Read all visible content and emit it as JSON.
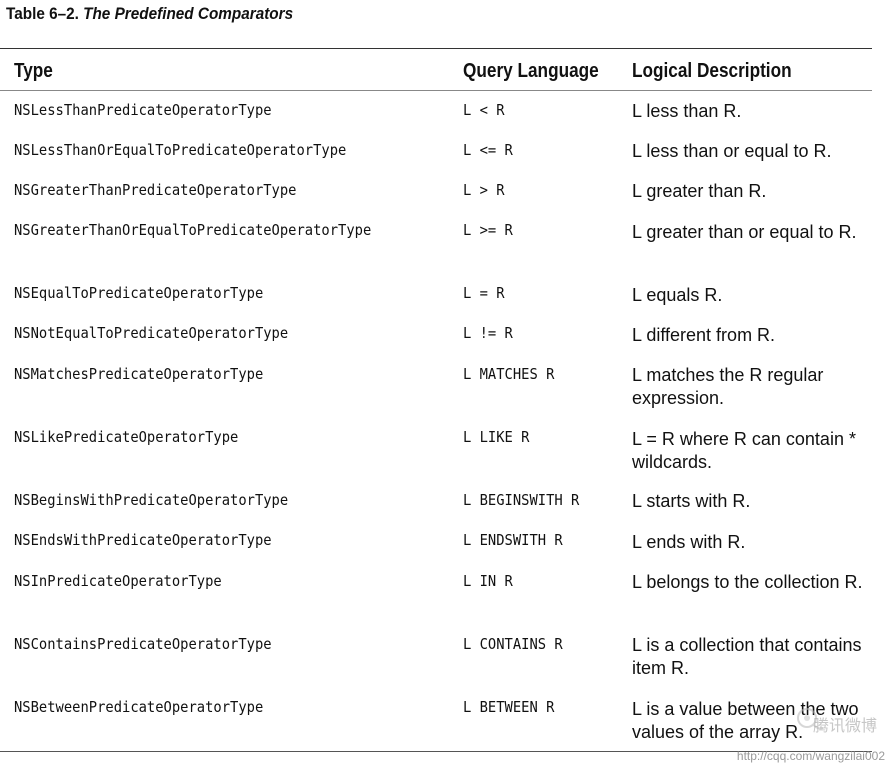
{
  "caption": {
    "number": "Table 6–2.",
    "title": "The Predefined Comparators"
  },
  "table": {
    "columns": [
      "Type",
      "Query Language",
      "Logical Description"
    ],
    "rows": [
      {
        "type": "NSLessThanPredicateOperatorType",
        "query": "L < R",
        "description": "L less than R."
      },
      {
        "type": "NSLessThanOrEqualToPredicateOperatorType",
        "query": "L <= R",
        "description": "L less than or equal to R."
      },
      {
        "type": "NSGreaterThanPredicateOperatorType",
        "query": "L > R",
        "description": "L greater than R."
      },
      {
        "type": "NSGreaterThanOrEqualToPredicateOperatorType",
        "query": "L >= R",
        "description": "L greater than or equal to R."
      },
      {
        "type": "NSEqualToPredicateOperatorType",
        "query": "L = R",
        "description": "L equals R."
      },
      {
        "type": "NSNotEqualToPredicateOperatorType",
        "query": "L != R",
        "description": "L different from R."
      },
      {
        "type": "NSMatchesPredicateOperatorType",
        "query": "L MATCHES R",
        "description": "L matches the R regular expression."
      },
      {
        "type": "NSLikePredicateOperatorType",
        "query": "L LIKE R",
        "description": "L = R where R can contain * wildcards."
      },
      {
        "type": "NSBeginsWithPredicateOperatorType",
        "query": "L BEGINSWITH R",
        "description": "L starts with R."
      },
      {
        "type": "NSEndsWithPredicateOperatorType",
        "query": "L ENDSWITH R",
        "description": "L ends with R."
      },
      {
        "type": "NSInPredicateOperatorType",
        "query": "L IN R",
        "description": "L belongs to the collection R."
      },
      {
        "type": "NSContainsPredicateOperatorType",
        "query": "L CONTAINS R",
        "description": "L is a collection that contains item R."
      },
      {
        "type": "NSBetweenPredicateOperatorType",
        "query": "L BETWEEN R",
        "description": "L is a value between the two values of the array R."
      }
    ]
  },
  "watermark": {
    "url": "http://cqq.com/wangzilai002",
    "brand": "腾讯微博"
  }
}
